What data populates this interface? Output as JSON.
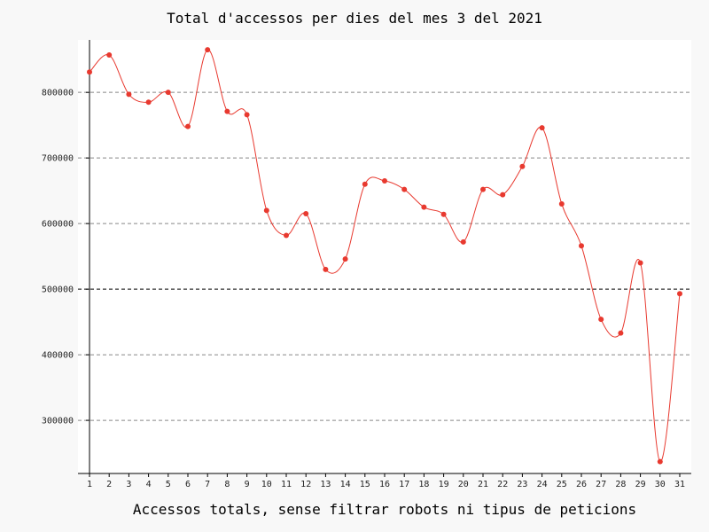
{
  "chart_data": {
    "type": "line",
    "title": "Total d'accessos per dies del mes 3 del 2021",
    "xlabel": "Accessos totals, sense filtrar robots ni tipus de peticions",
    "ylabel": "",
    "x": [
      1,
      2,
      3,
      4,
      5,
      6,
      7,
      8,
      9,
      10,
      11,
      12,
      13,
      14,
      15,
      16,
      17,
      18,
      19,
      20,
      21,
      22,
      23,
      24,
      25,
      26,
      27,
      28,
      29,
      30,
      31
    ],
    "x_tick_labels": [
      "1",
      "2",
      "3",
      "4",
      "5",
      "6",
      "7",
      "8",
      "9",
      "10",
      "11",
      "12",
      "13",
      "14",
      "15",
      "16",
      "17",
      "18",
      "19",
      "20",
      "21",
      "22",
      "23",
      "24",
      "25",
      "26",
      "27",
      "28",
      "29",
      "30",
      "31"
    ],
    "y_tick_values": [
      300000,
      400000,
      500000,
      600000,
      700000,
      800000
    ],
    "y_tick_labels": [
      "300000",
      "400000",
      "500000",
      "600000",
      "700000",
      "800000"
    ],
    "series": [
      {
        "values": [
          831000,
          857000,
          797000,
          785000,
          800000,
          748000,
          865000,
          771000,
          766000,
          620000,
          582000,
          615000,
          530000,
          546000,
          660000,
          665000,
          652000,
          625000,
          614000,
          572000,
          652000,
          644000,
          687000,
          746000,
          630000,
          566000,
          454000,
          433000,
          540000,
          237000,
          493000
        ],
        "color": "#e8392f"
      }
    ],
    "ylim": [
      219000,
      880000
    ],
    "xlim": [
      0.5,
      31.5
    ],
    "grid": "horizontal-dashed",
    "highlight_line_y": 500000,
    "smooth": true
  }
}
